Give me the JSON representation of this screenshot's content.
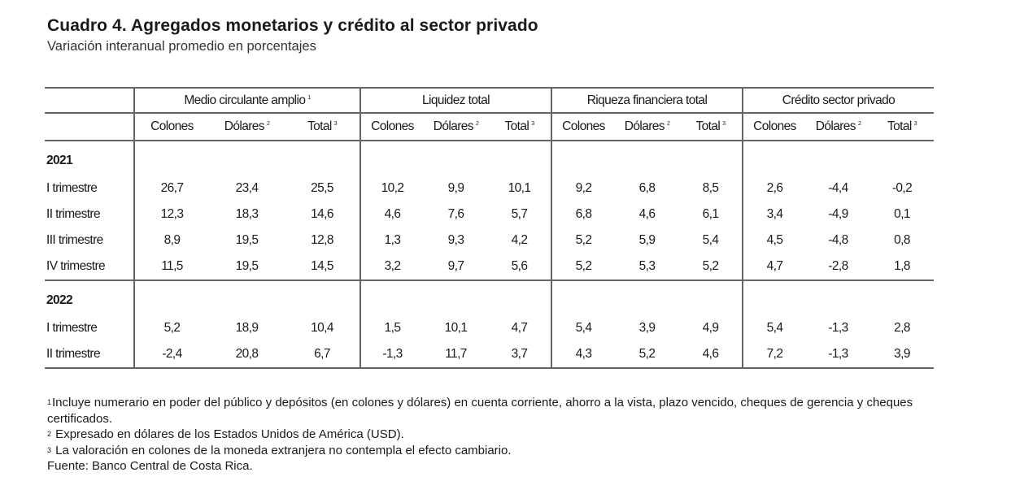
{
  "title": "Cuadro 4. Agregados monetarios y crédito al sector privado",
  "subtitle": "Variación interanual promedio en porcentajes",
  "groups": [
    {
      "label": "Medio circulante amplio",
      "sup": "1"
    },
    {
      "label": "Liquidez total",
      "sup": ""
    },
    {
      "label": "Riqueza financiera total",
      "sup": ""
    },
    {
      "label": "Crédito sector privado",
      "sup": ""
    }
  ],
  "subheaders": [
    {
      "label": "Colones",
      "sup": ""
    },
    {
      "label": "Dólares",
      "sup": "2"
    },
    {
      "label": "Total",
      "sup": "3"
    }
  ],
  "sections": [
    {
      "year": "2021",
      "rows": [
        {
          "label": "I trimestre",
          "values": [
            "26,7",
            "23,4",
            "25,5",
            "10,2",
            "9,9",
            "10,1",
            "9,2",
            "6,8",
            "8,5",
            "2,6",
            "-4,4",
            "-0,2"
          ]
        },
        {
          "label": "II trimestre",
          "values": [
            "12,3",
            "18,3",
            "14,6",
            "4,6",
            "7,6",
            "5,7",
            "6,8",
            "4,6",
            "6,1",
            "3,4",
            "-4,9",
            "0,1"
          ]
        },
        {
          "label": "III trimestre",
          "values": [
            "8,9",
            "19,5",
            "12,8",
            "1,3",
            "9,3",
            "4,2",
            "5,2",
            "5,9",
            "5,4",
            "4,5",
            "-4,8",
            "0,8"
          ]
        },
        {
          "label": "IV trimestre",
          "values": [
            "11,5",
            "19,5",
            "14,5",
            "3,2",
            "9,7",
            "5,6",
            "5,2",
            "5,3",
            "5,2",
            "4,7",
            "-2,8",
            "1,8"
          ]
        }
      ]
    },
    {
      "year": "2022",
      "rows": [
        {
          "label": "I trimestre",
          "values": [
            "5,2",
            "18,9",
            "10,4",
            "1,5",
            "10,1",
            "4,7",
            "5,4",
            "3,9",
            "4,9",
            "5,4",
            "-1,3",
            "2,8"
          ]
        },
        {
          "label": "II trimestre",
          "values": [
            "-2,4",
            "20,8",
            "6,7",
            "-1,3",
            "11,7",
            "3,7",
            "4,3",
            "5,2",
            "4,6",
            "7,2",
            "-1,3",
            "3,9"
          ]
        }
      ]
    }
  ],
  "footnotes": [
    {
      "sup": "1",
      "text": "Incluye numerario en poder del público y depósitos (en colones y dólares) en cuenta corriente, ahorro a la vista, plazo vencido, cheques de gerencia y cheques certificados."
    },
    {
      "sup": "2",
      "text": " Expresado en dólares de los Estados Unidos de América (USD)."
    },
    {
      "sup": "3",
      "text": " La valoración en colones de la moneda extranjera no contempla el efecto cambiario."
    },
    {
      "sup": "",
      "text": "Fuente: Banco Central de Costa Rica."
    }
  ]
}
